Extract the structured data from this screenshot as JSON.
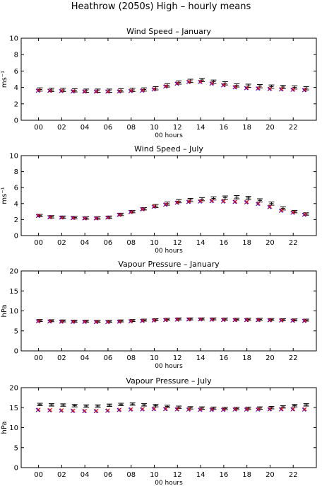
{
  "figure_title": "Heathrow (2050s) High – hourly means",
  "colors": {
    "mean": "#000000",
    "series_a": "#0000ff",
    "series_b": "#ff0000",
    "axes": "#000000"
  },
  "chart_data": [
    {
      "type": "scatter",
      "title": "Wind Speed – January",
      "xlabel": "00 hours",
      "ylabel": "ms⁻¹",
      "ylim": [
        0,
        10
      ],
      "yticks": [
        0,
        2,
        4,
        6,
        8,
        10
      ],
      "xticks": [
        "00",
        "02",
        "04",
        "06",
        "08",
        "10",
        "12",
        "14",
        "16",
        "18",
        "20",
        "22"
      ],
      "x": [
        0,
        1,
        2,
        3,
        4,
        5,
        6,
        7,
        8,
        9,
        10,
        11,
        12,
        13,
        14,
        15,
        16,
        17,
        18,
        19,
        20,
        21,
        22,
        23
      ],
      "series": [
        {
          "values": [
            3.75,
            3.7,
            3.7,
            3.65,
            3.6,
            3.6,
            3.6,
            3.65,
            3.7,
            3.75,
            3.9,
            4.25,
            4.6,
            4.8,
            4.9,
            4.7,
            4.5,
            4.25,
            4.2,
            4.15,
            4.1,
            4.05,
            4.0,
            3.9
          ],
          "err": [
            0.2,
            0.2,
            0.2,
            0.2,
            0.2,
            0.2,
            0.2,
            0.2,
            0.2,
            0.2,
            0.2,
            0.2,
            0.2,
            0.2,
            0.2,
            0.2,
            0.2,
            0.2,
            0.2,
            0.2,
            0.2,
            0.2,
            0.2,
            0.2
          ]
        },
        {
          "values": [
            3.6,
            3.6,
            3.55,
            3.5,
            3.5,
            3.5,
            3.5,
            3.5,
            3.55,
            3.6,
            3.75,
            4.1,
            4.45,
            4.65,
            4.65,
            4.45,
            4.25,
            4.0,
            3.9,
            3.85,
            3.8,
            3.75,
            3.7,
            3.65
          ]
        },
        {
          "values": [
            3.65,
            3.6,
            3.6,
            3.55,
            3.5,
            3.5,
            3.5,
            3.55,
            3.6,
            3.65,
            3.8,
            4.15,
            4.5,
            4.7,
            4.7,
            4.5,
            4.3,
            4.05,
            3.95,
            3.9,
            3.85,
            3.8,
            3.75,
            3.7
          ]
        }
      ]
    },
    {
      "type": "scatter",
      "title": "Wind Speed – July",
      "xlabel": "00 hours",
      "ylabel": "ms⁻¹",
      "ylim": [
        0,
        10
      ],
      "yticks": [
        0,
        2,
        4,
        6,
        8,
        10
      ],
      "xticks": [
        "00",
        "02",
        "04",
        "06",
        "08",
        "10",
        "12",
        "14",
        "16",
        "18",
        "20",
        "22"
      ],
      "x": [
        0,
        1,
        2,
        3,
        4,
        5,
        6,
        7,
        8,
        9,
        10,
        11,
        12,
        13,
        14,
        15,
        16,
        17,
        18,
        19,
        20,
        21,
        22,
        23
      ],
      "series": [
        {
          "values": [
            2.5,
            2.35,
            2.3,
            2.25,
            2.2,
            2.2,
            2.3,
            2.65,
            3.0,
            3.35,
            3.7,
            4.0,
            4.3,
            4.45,
            4.55,
            4.65,
            4.75,
            4.8,
            4.7,
            4.4,
            4.0,
            3.4,
            3.0,
            2.7
          ],
          "err": [
            0.15,
            0.15,
            0.15,
            0.15,
            0.15,
            0.15,
            0.15,
            0.15,
            0.15,
            0.15,
            0.2,
            0.2,
            0.2,
            0.2,
            0.2,
            0.2,
            0.2,
            0.2,
            0.2,
            0.2,
            0.2,
            0.2,
            0.15,
            0.15
          ]
        },
        {
          "values": [
            2.45,
            2.3,
            2.25,
            2.2,
            2.15,
            2.15,
            2.25,
            2.6,
            2.95,
            3.3,
            3.6,
            3.85,
            4.1,
            4.2,
            4.25,
            4.3,
            4.25,
            4.2,
            4.15,
            3.95,
            3.55,
            3.1,
            2.85,
            2.6
          ]
        },
        {
          "values": [
            2.5,
            2.3,
            2.25,
            2.2,
            2.15,
            2.15,
            2.25,
            2.6,
            2.95,
            3.3,
            3.65,
            3.9,
            4.15,
            4.25,
            4.3,
            4.35,
            4.3,
            4.25,
            4.2,
            4.0,
            3.6,
            3.15,
            2.9,
            2.65
          ]
        }
      ]
    },
    {
      "type": "scatter",
      "title": "Vapour Pressure – January",
      "xlabel": "00 hours",
      "ylabel": "hPa",
      "ylim": [
        0,
        20
      ],
      "yticks": [
        0,
        5,
        10,
        15,
        20
      ],
      "xticks": [
        "00",
        "02",
        "04",
        "06",
        "08",
        "10",
        "12",
        "14",
        "16",
        "18",
        "20",
        "22"
      ],
      "x": [
        0,
        1,
        2,
        3,
        4,
        5,
        6,
        7,
        8,
        9,
        10,
        11,
        12,
        13,
        14,
        15,
        16,
        17,
        18,
        19,
        20,
        21,
        22,
        23
      ],
      "series": [
        {
          "values": [
            7.6,
            7.55,
            7.5,
            7.45,
            7.45,
            7.4,
            7.4,
            7.5,
            7.6,
            7.7,
            7.8,
            7.9,
            8.0,
            8.0,
            8.0,
            8.0,
            7.95,
            7.9,
            7.9,
            7.9,
            7.85,
            7.8,
            7.75,
            7.7
          ],
          "err": [
            0.25,
            0.25,
            0.25,
            0.25,
            0.25,
            0.25,
            0.25,
            0.25,
            0.25,
            0.25,
            0.25,
            0.25,
            0.25,
            0.25,
            0.25,
            0.25,
            0.25,
            0.25,
            0.25,
            0.25,
            0.25,
            0.25,
            0.25,
            0.25
          ]
        },
        {
          "values": [
            7.4,
            7.35,
            7.3,
            7.25,
            7.25,
            7.2,
            7.2,
            7.3,
            7.4,
            7.5,
            7.6,
            7.7,
            7.8,
            7.85,
            7.85,
            7.8,
            7.75,
            7.7,
            7.7,
            7.7,
            7.65,
            7.6,
            7.55,
            7.5
          ]
        },
        {
          "values": [
            7.45,
            7.4,
            7.35,
            7.3,
            7.3,
            7.25,
            7.25,
            7.35,
            7.45,
            7.55,
            7.65,
            7.75,
            7.85,
            7.9,
            7.9,
            7.85,
            7.8,
            7.75,
            7.75,
            7.75,
            7.7,
            7.65,
            7.6,
            7.55
          ]
        }
      ]
    },
    {
      "type": "scatter",
      "title": "Vapour Pressure – July",
      "xlabel": "00 hours",
      "ylabel": "hPa",
      "ylim": [
        0,
        20
      ],
      "yticks": [
        0,
        5,
        10,
        15,
        20
      ],
      "xticks": [
        "00",
        "02",
        "04",
        "06",
        "08",
        "10",
        "12",
        "14",
        "16",
        "18",
        "20",
        "22"
      ],
      "x": [
        0,
        1,
        2,
        3,
        4,
        5,
        6,
        7,
        8,
        9,
        10,
        11,
        12,
        13,
        14,
        15,
        16,
        17,
        18,
        19,
        20,
        21,
        22,
        23
      ],
      "series": [
        {
          "values": [
            15.8,
            15.7,
            15.65,
            15.5,
            15.4,
            15.4,
            15.6,
            15.8,
            15.9,
            15.7,
            15.5,
            15.3,
            15.1,
            14.95,
            14.9,
            14.85,
            14.8,
            14.8,
            14.85,
            14.9,
            15.0,
            15.2,
            15.5,
            15.7
          ],
          "err": [
            0.3,
            0.3,
            0.3,
            0.3,
            0.3,
            0.3,
            0.3,
            0.3,
            0.3,
            0.3,
            0.3,
            0.3,
            0.3,
            0.3,
            0.3,
            0.3,
            0.3,
            0.3,
            0.3,
            0.3,
            0.3,
            0.3,
            0.3,
            0.3
          ]
        },
        {
          "values": [
            14.4,
            14.3,
            14.25,
            14.15,
            14.1,
            14.1,
            14.2,
            14.4,
            14.5,
            14.55,
            14.6,
            14.6,
            14.55,
            14.5,
            14.45,
            14.45,
            14.45,
            14.5,
            14.5,
            14.5,
            14.55,
            14.55,
            14.55,
            14.5
          ]
        },
        {
          "values": [
            14.5,
            14.4,
            14.35,
            14.25,
            14.2,
            14.2,
            14.3,
            14.5,
            14.6,
            14.65,
            14.7,
            14.7,
            14.65,
            14.6,
            14.55,
            14.55,
            14.55,
            14.6,
            14.6,
            14.6,
            14.65,
            14.65,
            14.65,
            14.6
          ]
        }
      ]
    }
  ]
}
